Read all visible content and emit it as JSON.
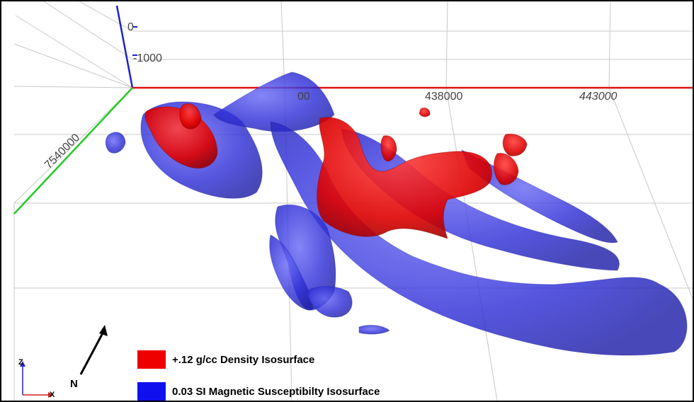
{
  "scene": {
    "vertical_ticks": [
      "0",
      "-1000"
    ],
    "easting_ticks": [
      "438000",
      "443000"
    ],
    "partial_tick": "00",
    "northing_tick": "7540000"
  },
  "legend": [
    {
      "label": "+.12 g/cc Density Isosurface",
      "color": "#ee0000"
    },
    {
      "label": "0.03 SI Magnetic Susceptibilty Isosurface",
      "color": "#1010ee"
    }
  ],
  "north_arrow": {
    "label": "N",
    "icon": "north-arrow-icon"
  },
  "orientation_triad": {
    "z_label": "Z",
    "x_label": "X"
  },
  "axis_colors": {
    "vertical": "#1e22c8",
    "easting": "#dd1111",
    "northing": "#22cc22"
  }
}
